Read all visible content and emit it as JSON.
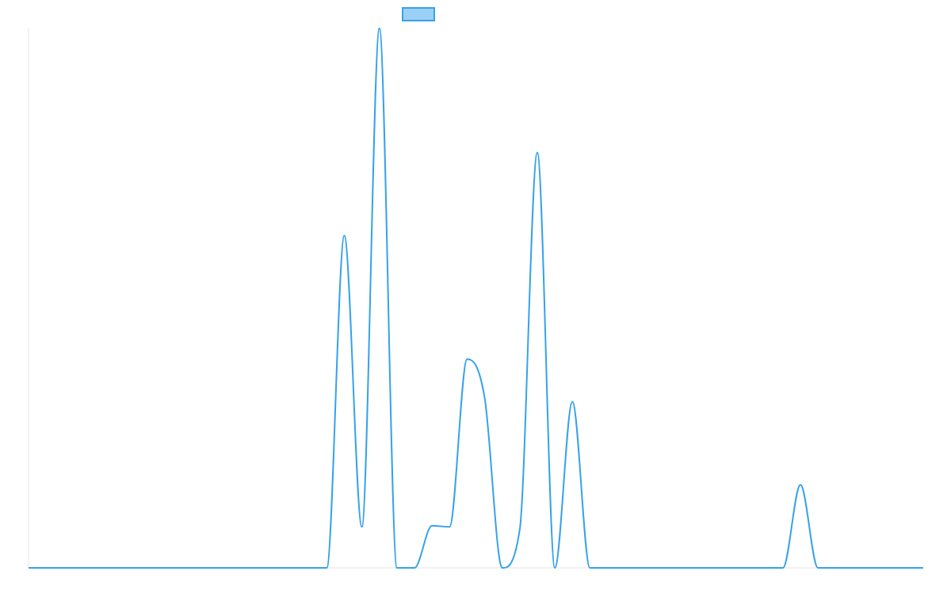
{
  "chart_data": {
    "type": "line",
    "title": "",
    "xlabel": "",
    "ylabel": "",
    "grid": false,
    "legend": {
      "placement": "top-center",
      "entries": [
        {
          "name": "",
          "color": "#36a2eb",
          "fill": "#9ad0f5"
        }
      ]
    },
    "x_range": [
      0,
      102
    ],
    "y_range": [
      0,
      100
    ],
    "series": [
      {
        "name": "",
        "color": "#36a2eb",
        "curve": "smooth",
        "points": [
          {
            "x": 0,
            "y": 0
          },
          {
            "x": 34,
            "y": 0
          },
          {
            "x": 36,
            "y": 61.6
          },
          {
            "x": 38,
            "y": 7.6
          },
          {
            "x": 40,
            "y": 100
          },
          {
            "x": 42,
            "y": 0
          },
          {
            "x": 44,
            "y": 0
          },
          {
            "x": 46,
            "y": 7.8
          },
          {
            "x": 48,
            "y": 7.6
          },
          {
            "x": 50,
            "y": 38.7
          },
          {
            "x": 52,
            "y": 31.5
          },
          {
            "x": 54,
            "y": 0
          },
          {
            "x": 56,
            "y": 7.1
          },
          {
            "x": 58,
            "y": 77.0
          },
          {
            "x": 60,
            "y": 0
          },
          {
            "x": 62,
            "y": 30.8
          },
          {
            "x": 64,
            "y": 0
          },
          {
            "x": 86,
            "y": 0
          },
          {
            "x": 88,
            "y": 15.4
          },
          {
            "x": 90,
            "y": 0
          },
          {
            "x": 102,
            "y": 0
          }
        ]
      }
    ]
  }
}
